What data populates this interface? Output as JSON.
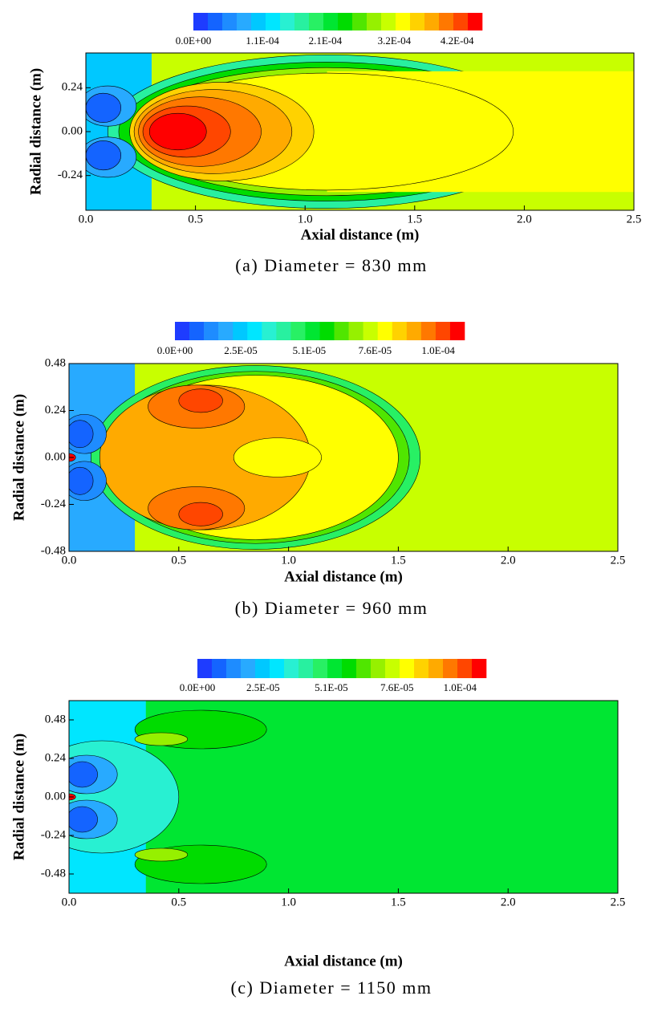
{
  "chart_data": [
    {
      "type": "contour",
      "caption": "(a) Diameter = 830 mm",
      "xlabel": "Axial distance (m)",
      "ylabel": "Radial distance (m)",
      "xlim": [
        0,
        2.5
      ],
      "xticks": [
        {
          "value": 0,
          "label": "0.0"
        },
        0.5,
        {
          "value": 1,
          "label": "1.0"
        },
        1.5,
        {
          "value": 2,
          "label": "2.0"
        },
        2.5
      ],
      "ylim": [
        -0.43,
        0.43
      ],
      "yticks": [
        0.24,
        {
          "value": 0,
          "label": "0.00"
        },
        -0.24
      ],
      "colorbar": {
        "lim": [
          0,
          0.00046
        ],
        "ticks": [
          {
            "value": 0,
            "label": "0.0E+00"
          },
          {
            "value": 0.00011,
            "label": "1.1E-04"
          },
          {
            "value": 0.00021,
            "label": "2.1E-04"
          },
          {
            "value": 0.00032,
            "label": "3.2E-04"
          },
          {
            "value": 0.00042,
            "label": "4.2E-04"
          }
        ],
        "colors": [
          "#1e3cff",
          "#1464ff",
          "#1e8cff",
          "#28aaff",
          "#00c8ff",
          "#00e6ff",
          "#28f0d2",
          "#28f0a0",
          "#28f064",
          "#00e632",
          "#00dc00",
          "#50e600",
          "#96f000",
          "#c8ff00",
          "#ffff00",
          "#ffd200",
          "#ffaa00",
          "#ff7800",
          "#ff4600",
          "#ff0000"
        ]
      }
    },
    {
      "type": "contour",
      "caption": "(b) Diameter = 960 mm",
      "xlabel": "Axial distance (m)",
      "ylabel": "Radial distance (m)",
      "xlim": [
        0,
        2.5
      ],
      "xticks": [
        {
          "value": 0,
          "label": "0.0"
        },
        0.5,
        {
          "value": 1,
          "label": "1.0"
        },
        1.5,
        {
          "value": 2,
          "label": "2.0"
        },
        2.5
      ],
      "ylim": [
        -0.48,
        0.48
      ],
      "yticks": [
        0.48,
        0.24,
        {
          "value": 0,
          "label": "0.00"
        },
        -0.24,
        -0.48
      ],
      "colorbar": {
        "lim": [
          0,
          0.00011
        ],
        "ticks": [
          {
            "value": 0,
            "label": "0.0E+00"
          },
          {
            "value": 2.5e-05,
            "label": "2.5E-05"
          },
          {
            "value": 5.1e-05,
            "label": "5.1E-05"
          },
          {
            "value": 7.6e-05,
            "label": "7.6E-05"
          },
          {
            "value": 0.0001,
            "label": "1.0E-04"
          }
        ],
        "colors": [
          "#1e3cff",
          "#1464ff",
          "#1e8cff",
          "#28aaff",
          "#00c8ff",
          "#00e6ff",
          "#28f0d2",
          "#28f0a0",
          "#28f064",
          "#00e632",
          "#00dc00",
          "#50e600",
          "#96f000",
          "#c8ff00",
          "#ffff00",
          "#ffd200",
          "#ffaa00",
          "#ff7800",
          "#ff4600",
          "#ff0000"
        ]
      }
    },
    {
      "type": "contour",
      "caption": "(c) Diameter = 1150  mm",
      "xlabel": "Axial distance (m)",
      "ylabel": "Radial distance (m)",
      "xlim": [
        0,
        2.5
      ],
      "xticks": [
        {
          "value": 0,
          "label": "0.0"
        },
        0.5,
        {
          "value": 1,
          "label": "1.0"
        },
        1.5,
        {
          "value": 2,
          "label": "2.0"
        },
        2.5
      ],
      "ylim": [
        -0.6,
        0.6
      ],
      "yticks": [
        0.48,
        0.24,
        {
          "value": 0,
          "label": "0.00"
        },
        -0.24,
        -0.48
      ],
      "colorbar": {
        "lim": [
          0,
          0.00011
        ],
        "ticks": [
          {
            "value": 0,
            "label": "0.0E+00"
          },
          {
            "value": 2.5e-05,
            "label": "2.5E-05"
          },
          {
            "value": 5.1e-05,
            "label": "5.1E-05"
          },
          {
            "value": 7.6e-05,
            "label": "7.6E-05"
          },
          {
            "value": 0.0001,
            "label": "1.0E-04"
          }
        ],
        "colors": [
          "#1e3cff",
          "#1464ff",
          "#1e8cff",
          "#28aaff",
          "#00c8ff",
          "#00e6ff",
          "#28f0d2",
          "#28f0a0",
          "#28f064",
          "#00e632",
          "#00dc00",
          "#50e600",
          "#96f000",
          "#c8ff00",
          "#ffff00",
          "#ffd200",
          "#ffaa00",
          "#ff7800",
          "#ff4600",
          "#ff0000"
        ]
      }
    }
  ]
}
